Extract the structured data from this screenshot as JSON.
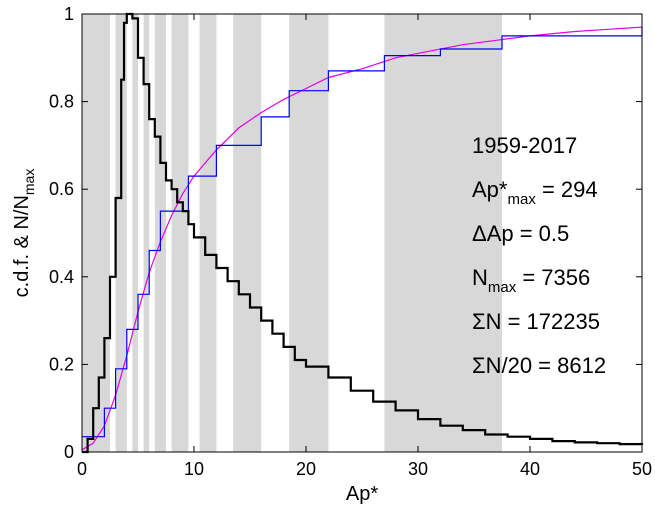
{
  "chart_data": {
    "type": "line",
    "xlabel": "Ap*",
    "ylabel": {
      "main": "c.d.f.  &  N/N",
      "sub": "max"
    },
    "xlim": [
      0,
      50
    ],
    "ylim": [
      0,
      1
    ],
    "xticks": [
      0,
      10,
      20,
      30,
      40,
      50
    ],
    "yticks": [
      0,
      0.2,
      0.4,
      0.6,
      0.8,
      1
    ],
    "xtick_labels": [
      "0",
      "10",
      "20",
      "30",
      "40",
      "50"
    ],
    "ytick_labels": [
      "0",
      "0.2",
      "0.4",
      "0.6",
      "0.8",
      "1"
    ],
    "grid": false,
    "shaded_bands": [
      [
        0,
        2.5
      ],
      [
        3,
        4
      ],
      [
        4.5,
        5
      ],
      [
        5.5,
        6
      ],
      [
        6.5,
        7.5
      ],
      [
        8,
        9.5
      ],
      [
        10.5,
        12
      ],
      [
        13.5,
        16
      ],
      [
        18.5,
        22
      ],
      [
        27,
        37.5
      ]
    ],
    "colors": {
      "histogram": "#000000",
      "cdf_step": "#0000ff",
      "cdf_fit": "#e600e6",
      "bands": "#d8d8d8"
    },
    "series": [
      {
        "style": "black-step",
        "points": [
          [
            0,
            0
          ],
          [
            0.5,
            0.03
          ],
          [
            1,
            0.1
          ],
          [
            1.5,
            0.17
          ],
          [
            2,
            0.26
          ],
          [
            2.5,
            0.4
          ],
          [
            3,
            0.58
          ],
          [
            3.5,
            0.85
          ],
          [
            3.75,
            0.98
          ],
          [
            4,
            1.0
          ],
          [
            4.5,
            0.99
          ],
          [
            5,
            0.9
          ],
          [
            5.5,
            0.84
          ],
          [
            6,
            0.76
          ],
          [
            6.5,
            0.72
          ],
          [
            7,
            0.66
          ],
          [
            7.5,
            0.62
          ],
          [
            8,
            0.6
          ],
          [
            8.5,
            0.57
          ],
          [
            9,
            0.55
          ],
          [
            9.5,
            0.52
          ],
          [
            10,
            0.49
          ],
          [
            11,
            0.45
          ],
          [
            12,
            0.42
          ],
          [
            13,
            0.39
          ],
          [
            14,
            0.36
          ],
          [
            15,
            0.33
          ],
          [
            16,
            0.3
          ],
          [
            17,
            0.27
          ],
          [
            18,
            0.24
          ],
          [
            19,
            0.21
          ],
          [
            20,
            0.195
          ],
          [
            22,
            0.17
          ],
          [
            24,
            0.14
          ],
          [
            26,
            0.115
          ],
          [
            28,
            0.095
          ],
          [
            30,
            0.075
          ],
          [
            32,
            0.06
          ],
          [
            34,
            0.05
          ],
          [
            36,
            0.04
          ],
          [
            38,
            0.035
          ],
          [
            40,
            0.03
          ],
          [
            42,
            0.025
          ],
          [
            44,
            0.022
          ],
          [
            46,
            0.02
          ],
          [
            48,
            0.018
          ],
          [
            50,
            0.017
          ]
        ]
      },
      {
        "style": "blue-step",
        "points": [
          [
            0,
            0.035
          ],
          [
            2,
            0.1
          ],
          [
            3,
            0.19
          ],
          [
            4,
            0.28
          ],
          [
            5,
            0.36
          ],
          [
            6,
            0.46
          ],
          [
            7,
            0.55
          ],
          [
            9.5,
            0.63
          ],
          [
            12,
            0.7
          ],
          [
            16,
            0.765
          ],
          [
            18.5,
            0.825
          ],
          [
            22,
            0.87
          ],
          [
            27,
            0.905
          ],
          [
            32,
            0.92
          ],
          [
            37.5,
            0.95
          ],
          [
            50,
            0.97
          ]
        ]
      },
      {
        "style": "magenta-smooth",
        "points": [
          [
            0,
            0.005
          ],
          [
            1,
            0.02
          ],
          [
            2,
            0.06
          ],
          [
            3,
            0.13
          ],
          [
            4,
            0.22
          ],
          [
            5,
            0.32
          ],
          [
            6,
            0.41
          ],
          [
            7,
            0.48
          ],
          [
            8,
            0.54
          ],
          [
            9,
            0.59
          ],
          [
            10,
            0.63
          ],
          [
            12,
            0.69
          ],
          [
            14,
            0.74
          ],
          [
            16,
            0.775
          ],
          [
            18,
            0.805
          ],
          [
            20,
            0.83
          ],
          [
            22,
            0.855
          ],
          [
            25,
            0.875
          ],
          [
            28,
            0.9
          ],
          [
            31,
            0.915
          ],
          [
            34,
            0.93
          ],
          [
            37,
            0.94
          ],
          [
            40,
            0.95
          ],
          [
            44,
            0.96
          ],
          [
            47,
            0.965
          ],
          [
            50,
            0.97
          ]
        ]
      }
    ],
    "annotations": [
      {
        "text": "1959-2017"
      },
      {
        "text": "Ap*",
        "sub": "max",
        "tail": " = 294"
      },
      {
        "text": "ΔAp = 0.5"
      },
      {
        "text": "N",
        "sub": "max",
        "tail": " = 7356"
      },
      {
        "text": "ΣN = 172235"
      },
      {
        "text": "ΣN/20 = 8612"
      }
    ]
  }
}
